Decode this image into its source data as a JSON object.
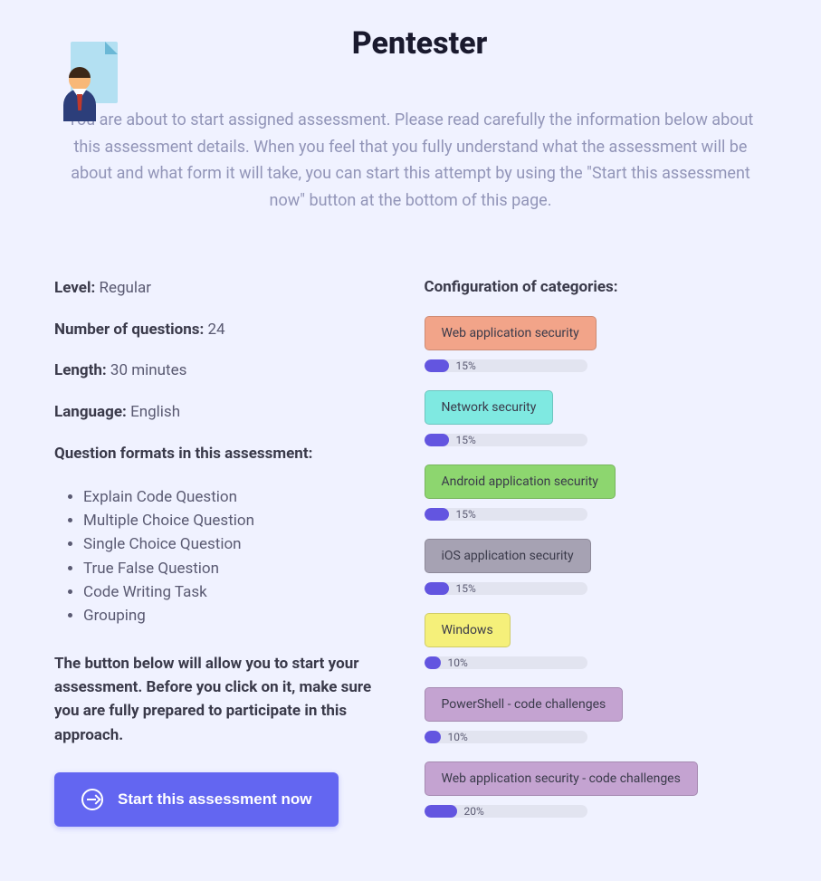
{
  "page": {
    "title": "Pentester",
    "intro": "You are about to start assigned assessment. Please read carefully the information below about this assessment details. When you feel that you fully understand what the assessment will be about and what form it will take, you can start this attempt by using the \"Start this assessment now\" button at the bottom of this page."
  },
  "details": {
    "level_label": "Level:",
    "level_value": "Regular",
    "num_q_label": "Number of questions:",
    "num_q_value": "24",
    "length_label": "Length:",
    "length_value": "30 minutes",
    "lang_label": "Language:",
    "lang_value": "English",
    "formats_heading": "Question formats in this assessment:",
    "formats": [
      "Explain Code Question",
      "Multiple Choice Question",
      "Single Choice Question",
      "True False Question",
      "Code Writing Task",
      "Grouping"
    ],
    "warning": "The button below will allow you to start your assessment. Before you click on it, make sure you are fully prepared to participate in this approach.",
    "start_button": "Start this assessment now"
  },
  "categories": {
    "heading": "Configuration of categories:",
    "progress_color": "#6355e0",
    "track_color": "#e2e4f0",
    "track_width": 180,
    "items": [
      {
        "label": "Web application security",
        "percent": 15,
        "bg": "#f2a489"
      },
      {
        "label": "Network security",
        "percent": 15,
        "bg": "#7fe9e1"
      },
      {
        "label": "Android application security",
        "percent": 15,
        "bg": "#8dd66f"
      },
      {
        "label": "iOS application security",
        "percent": 15,
        "bg": "#a6a2b3"
      },
      {
        "label": "Windows",
        "percent": 10,
        "bg": "#f5f07a"
      },
      {
        "label": "PowerShell - code challenges",
        "percent": 10,
        "bg": "#c4a3d1"
      },
      {
        "label": "Web application security - code challenges",
        "percent": 20,
        "bg": "#c4a3d1"
      }
    ]
  },
  "colors": {
    "page_bg": "#f0f2ff",
    "accent": "#6366f1",
    "text_muted": "#9295b8",
    "text_body": "#5a5a72",
    "text_strong": "#3a3a4a"
  }
}
